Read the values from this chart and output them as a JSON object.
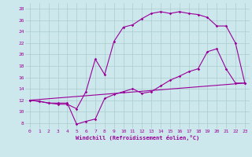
{
  "xlabel": "Windchill (Refroidissement éolien,°C)",
  "bg_color": "#cce8ec",
  "grid_color": "#aacccc",
  "line_color": "#990099",
  "xlim": [
    -0.5,
    23.5
  ],
  "ylim": [
    7,
    29
  ],
  "xticks": [
    0,
    1,
    2,
    3,
    4,
    5,
    6,
    7,
    8,
    9,
    10,
    11,
    12,
    13,
    14,
    15,
    16,
    17,
    18,
    19,
    20,
    21,
    22,
    23
  ],
  "yticks": [
    8,
    10,
    12,
    14,
    16,
    18,
    20,
    22,
    24,
    26,
    28
  ],
  "line1_x": [
    0,
    1,
    2,
    3,
    4,
    5,
    6,
    7,
    8,
    9,
    10,
    11,
    12,
    13,
    14,
    15,
    16,
    17,
    18,
    19,
    20,
    21,
    22,
    23
  ],
  "line1_y": [
    12,
    11.8,
    11.5,
    11.5,
    11.5,
    7.8,
    8.3,
    8.7,
    12.3,
    13.0,
    13.5,
    14.0,
    13.2,
    13.5,
    14.5,
    15.5,
    16.2,
    17.0,
    17.5,
    20.5,
    21.0,
    17.5,
    15.0,
    15.0
  ],
  "line2_x": [
    0,
    1,
    2,
    3,
    4,
    5,
    6,
    7,
    8,
    9,
    10,
    11,
    12,
    13,
    14,
    15,
    16,
    17,
    18,
    19,
    20,
    21,
    22,
    23
  ],
  "line2_y": [
    12,
    11.8,
    11.5,
    11.3,
    11.3,
    10.5,
    13.5,
    19.2,
    16.5,
    22.3,
    24.8,
    25.2,
    26.3,
    27.2,
    27.5,
    27.2,
    27.5,
    27.2,
    27.0,
    26.5,
    25.0,
    25.0,
    22.0,
    15.0
  ],
  "line3_x": [
    0,
    23
  ],
  "line3_y": [
    12,
    15.0
  ],
  "marker": "D",
  "markersize": 1.8,
  "linewidth": 0.8
}
